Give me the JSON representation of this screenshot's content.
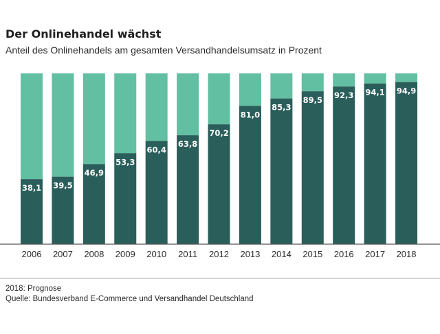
{
  "header": {
    "title": "Der Onlinehandel wächst",
    "subtitle": "Anteil des Onlinehandels am gesamten Versandhandelsumsatz in Prozent"
  },
  "footer": {
    "note": "2018: Prognose",
    "source": "Quelle: Bundesverband E-Commerce und Versandhandel Deutschland"
  },
  "colors": {
    "online": "#2a5e5a",
    "rest": "#62bfa1",
    "axis": "#555555",
    "label": "#ffffff"
  },
  "chart_data": {
    "type": "bar",
    "stacked": true,
    "categories": [
      "2006",
      "2007",
      "2008",
      "2009",
      "2010",
      "2011",
      "2012",
      "2013",
      "2014",
      "2015",
      "2016",
      "2017",
      "2018"
    ],
    "values": [
      38.1,
      39.5,
      46.9,
      53.3,
      60.4,
      63.8,
      70.2,
      81.0,
      85.3,
      89.5,
      92.3,
      94.1,
      94.9
    ],
    "value_labels": [
      "38,1",
      "39,5",
      "46,9",
      "53,3",
      "60,4",
      "63,8",
      "70,2",
      "81,0",
      "85,3",
      "89,5",
      "92,3",
      "94,1",
      "94,9"
    ],
    "ylim": [
      0,
      100
    ],
    "title": "Der Onlinehandel wächst",
    "subtitle": "Anteil des Onlinehandels am gesamten Versandhandelsumsatz in Prozent",
    "xlabel": "",
    "ylabel": "",
    "grid": false
  }
}
